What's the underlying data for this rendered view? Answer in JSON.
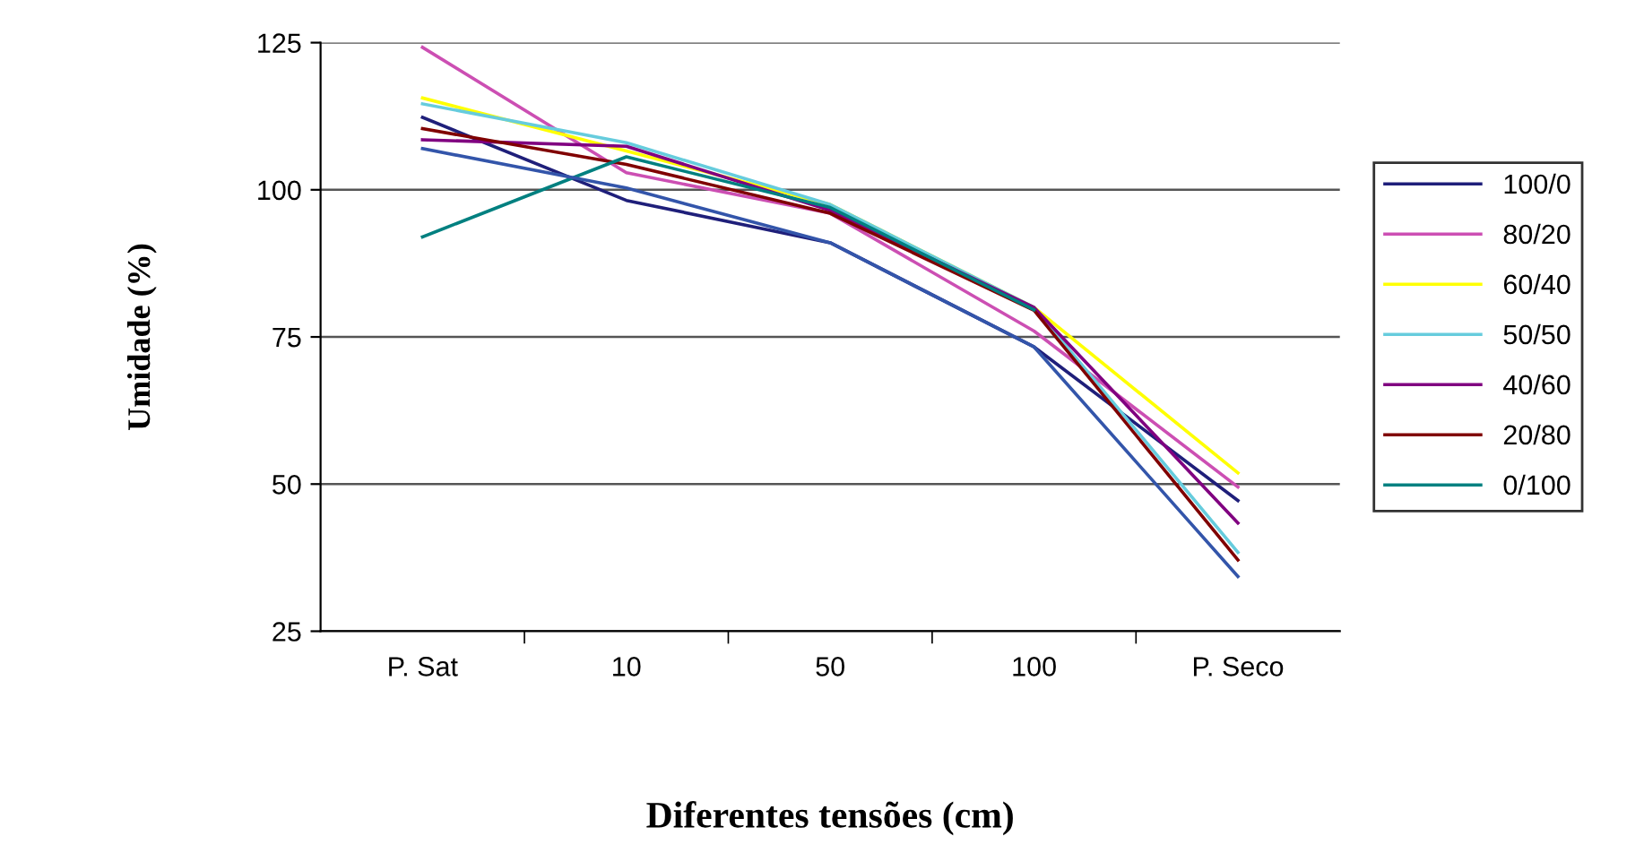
{
  "chart_data": {
    "type": "line",
    "xlabel": "Diferentes tensões (cm)",
    "ylabel": "Umidade (%)",
    "categories": [
      "P. Sat",
      "10",
      "50",
      "100",
      "P. Seco"
    ],
    "ylim": [
      25,
      125
    ],
    "yticks": [
      25,
      50,
      75,
      100,
      125
    ],
    "grid": "y",
    "legend": "right",
    "marker": "none",
    "line_style": "solid",
    "series": [
      {
        "name": "100/0",
        "color": "#1f1f7a",
        "values": [
          112.3,
          98.2,
          91,
          73.3,
          47.2
        ]
      },
      {
        "name": "80/20",
        "color": "#cc4fb3",
        "values": [
          124.2,
          102.9,
          96,
          76,
          49.5
        ]
      },
      {
        "name": "60/40",
        "color": "#ffff00",
        "values": [
          115.6,
          106.6,
          97.5,
          80,
          51.9
        ]
      },
      {
        "name": "50/50",
        "color": "#66ccdd",
        "values": [
          114.6,
          108,
          97.5,
          80,
          38.4
        ]
      },
      {
        "name": "40/60",
        "color": "#800080",
        "values": [
          108.5,
          107.4,
          96.5,
          80,
          43.4
        ]
      },
      {
        "name": "20/80",
        "color": "#800000",
        "values": [
          110.4,
          104.3,
          96,
          79.5,
          37.1
        ]
      },
      {
        "name": "0/100",
        "color": "#008080",
        "values": [
          92,
          105.6,
          97,
          79.6,
          null
        ]
      },
      {
        "color": "#3355aa",
        "values": [
          107,
          100.3,
          91,
          73.3,
          34.3
        ]
      }
    ]
  }
}
